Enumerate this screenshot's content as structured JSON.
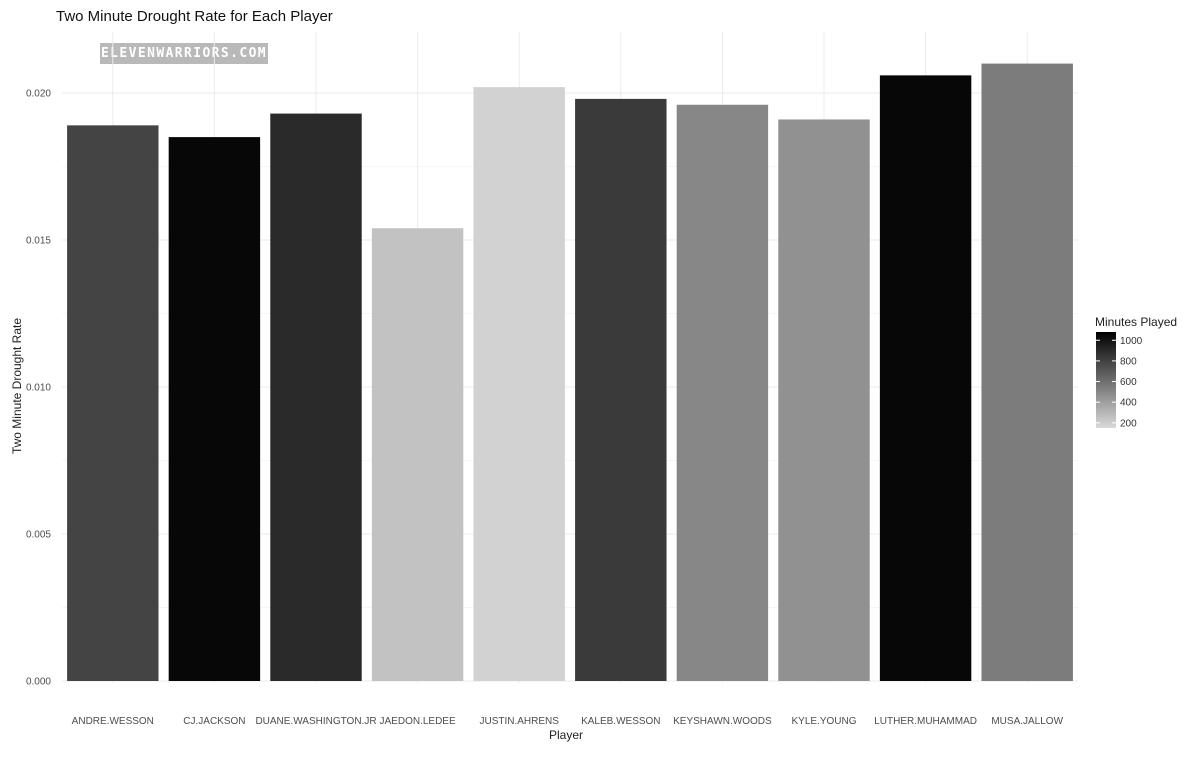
{
  "chart_data": {
    "type": "bar",
    "title": "Two Minute Drought Rate for Each Player",
    "xlabel": "Player",
    "ylabel": "Two Minute Drought Rate",
    "ylim": [
      0,
      0.0215
    ],
    "yticks": [
      "0.000",
      "0.005",
      "0.010",
      "0.015",
      "0.020"
    ],
    "grid": true,
    "categories": [
      "ANDRE.WESSON",
      "CJ.JACKSON",
      "DUANE.WASHINGTON.JR",
      "JAEDON.LEDEE",
      "JUSTIN.AHRENS",
      "KALEB.WESSON",
      "KEYSHAWN.WOODS",
      "KYLE.YOUNG",
      "LUTHER.MUHAMMAD",
      "MUSA.JALLOW"
    ],
    "values": [
      0.0189,
      0.0185,
      0.0193,
      0.0154,
      0.0202,
      0.0198,
      0.0196,
      0.0191,
      0.0206,
      0.021
    ],
    "minutes_played": [
      790,
      1050,
      900,
      250,
      180,
      830,
      500,
      460,
      1050,
      550
    ],
    "legend": {
      "title": "Minutes Played",
      "placement": "right",
      "min": 150,
      "max": 1080,
      "labels": [
        "1000",
        "800",
        "600",
        "400",
        "200"
      ],
      "values": [
        1000,
        800,
        600,
        400,
        200
      ],
      "color_low": "#d9d9d9",
      "color_high": "#000000"
    }
  },
  "watermark": "ELEVENWARRIORS.COM"
}
